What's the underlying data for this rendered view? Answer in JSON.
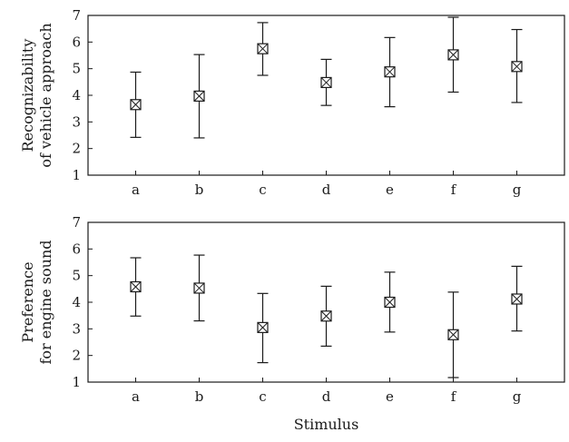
{
  "chart_data": [
    {
      "type": "scatter",
      "error_bars": true,
      "marker": "boxed-x",
      "categories": [
        "a",
        "b",
        "c",
        "d",
        "e",
        "f",
        "g"
      ],
      "series": [
        {
          "values": [
            3.65,
            3.97,
            5.75,
            4.48,
            4.88,
            5.52,
            5.08
          ],
          "lower": [
            2.42,
            2.4,
            4.75,
            3.62,
            3.57,
            4.12,
            3.73
          ],
          "upper": [
            4.87,
            5.53,
            6.73,
            5.35,
            6.17,
            6.93,
            6.47
          ]
        }
      ],
      "xlabel": "",
      "ylabel_lines": [
        "Recognizability",
        "of vehicle approach"
      ],
      "ylim": [
        1,
        7
      ],
      "yticks": [
        "1",
        "2",
        "3",
        "4",
        "5",
        "6",
        "7"
      ],
      "grid": false,
      "legend": "none"
    },
    {
      "type": "scatter",
      "error_bars": true,
      "marker": "boxed-x",
      "categories": [
        "a",
        "b",
        "c",
        "d",
        "e",
        "f",
        "g"
      ],
      "series": [
        {
          "values": [
            4.58,
            4.53,
            3.05,
            3.48,
            4.0,
            2.78,
            4.12
          ],
          "lower": [
            3.48,
            3.3,
            1.73,
            2.35,
            2.88,
            1.17,
            2.92
          ],
          "upper": [
            5.67,
            5.77,
            4.33,
            4.6,
            5.13,
            4.38,
            5.35
          ]
        }
      ],
      "xlabel": "Stimulus",
      "ylabel_lines": [
        "Preference",
        "for engine sound"
      ],
      "ylim": [
        1,
        7
      ],
      "yticks": [
        "1",
        "2",
        "3",
        "4",
        "5",
        "6",
        "7"
      ],
      "grid": false,
      "legend": "none"
    }
  ]
}
